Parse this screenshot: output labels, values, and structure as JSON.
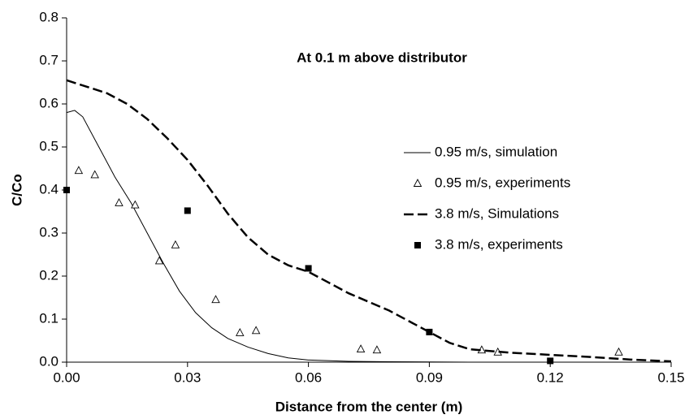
{
  "chart_data": {
    "type": "line",
    "annotation": "At 0.1 m above distributor",
    "x_label": "Distance from the center (m)",
    "y_label": "C/Co",
    "xlim": [
      0,
      0.15
    ],
    "ylim": [
      0,
      0.8
    ],
    "xticks": [
      {
        "value": 0,
        "label": "0.00"
      },
      {
        "value": 0.03,
        "label": "0.03"
      },
      {
        "value": 0.06,
        "label": "0.06"
      },
      {
        "value": 0.09,
        "label": "0.09"
      },
      {
        "value": 0.12,
        "label": "0.12"
      },
      {
        "value": 0.15,
        "label": "0.15"
      }
    ],
    "yticks": [
      {
        "value": 0,
        "label": "0.0"
      },
      {
        "value": 0.1,
        "label": "0.1"
      },
      {
        "value": 0.2,
        "label": "0.2"
      },
      {
        "value": 0.3,
        "label": "0.3"
      },
      {
        "value": 0.4,
        "label": "0.4"
      },
      {
        "value": 0.5,
        "label": "0.5"
      },
      {
        "value": 0.6,
        "label": "0.6"
      },
      {
        "value": 0.7,
        "label": "0.7"
      },
      {
        "value": 0.8,
        "label": "0.8"
      }
    ],
    "series": [
      {
        "name": "0.95 m/s, simulation",
        "color": "#000000",
        "type": "line",
        "dash": false,
        "x": [
          0,
          0.002,
          0.004,
          0.008,
          0.012,
          0.016,
          0.02,
          0.024,
          0.028,
          0.032,
          0.036,
          0.04,
          0.045,
          0.05,
          0.055,
          0.06,
          0.07,
          0.08,
          0.1,
          0.15
        ],
        "values": [
          0.58,
          0.585,
          0.57,
          0.5,
          0.43,
          0.37,
          0.3,
          0.23,
          0.165,
          0.115,
          0.08,
          0.055,
          0.035,
          0.02,
          0.01,
          0.005,
          0.002,
          0.001,
          0,
          0
        ]
      },
      {
        "name": "0.95 m/s, experiments",
        "color": "#000000",
        "type": "scatter",
        "marker": "triangle",
        "x": [
          0.003,
          0.007,
          0.013,
          0.017,
          0.023,
          0.027,
          0.037,
          0.043,
          0.047,
          0.073,
          0.077,
          0.103,
          0.107,
          0.137
        ],
        "values": [
          0.445,
          0.435,
          0.37,
          0.365,
          0.235,
          0.272,
          0.145,
          0.068,
          0.073,
          0.03,
          0.028,
          0.028,
          0.023,
          0.023
        ]
      },
      {
        "name": "3.8 m/s, Simulations",
        "color": "#000000",
        "type": "line",
        "dash": true,
        "x": [
          0,
          0.005,
          0.01,
          0.015,
          0.02,
          0.025,
          0.03,
          0.035,
          0.04,
          0.045,
          0.05,
          0.055,
          0.06,
          0.065,
          0.07,
          0.075,
          0.08,
          0.085,
          0.09,
          0.095,
          0.1,
          0.11,
          0.12,
          0.13,
          0.14,
          0.15
        ],
        "values": [
          0.655,
          0.64,
          0.625,
          0.6,
          0.565,
          0.52,
          0.47,
          0.41,
          0.345,
          0.29,
          0.25,
          0.225,
          0.21,
          0.185,
          0.16,
          0.14,
          0.12,
          0.095,
          0.07,
          0.045,
          0.03,
          0.022,
          0.017,
          0.012,
          0.006,
          0.002
        ]
      },
      {
        "name": "3.8 m/s, experiments",
        "color": "#000000",
        "type": "scatter",
        "marker": "square",
        "x": [
          0,
          0.03,
          0.06,
          0.09,
          0.12
        ],
        "values": [
          0.4,
          0.352,
          0.218,
          0.07,
          0.003
        ]
      }
    ]
  }
}
